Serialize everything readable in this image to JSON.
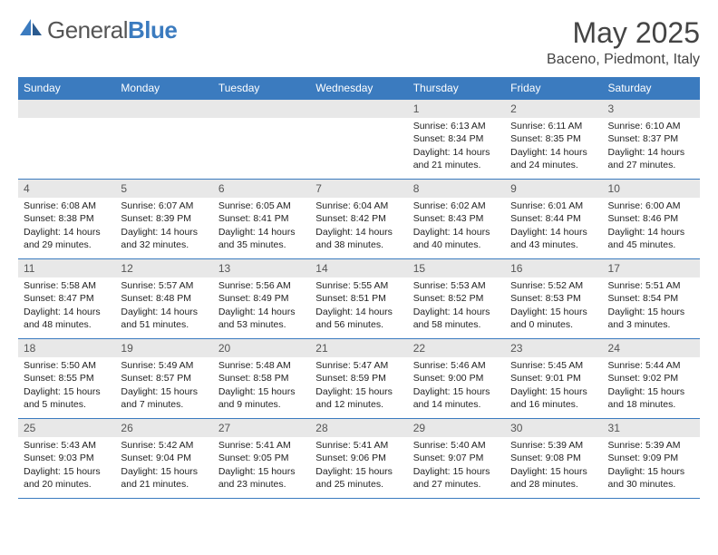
{
  "logo": {
    "part1": "General",
    "part2": "Blue"
  },
  "title": "May 2025",
  "location": "Baceno, Piedmont, Italy",
  "colors": {
    "header_bg": "#3b7bbf",
    "header_text": "#ffffff",
    "daynum_bg": "#e8e8e8",
    "border": "#3b7bbf",
    "text": "#222222"
  },
  "days": [
    "Sunday",
    "Monday",
    "Tuesday",
    "Wednesday",
    "Thursday",
    "Friday",
    "Saturday"
  ],
  "weeks": [
    [
      null,
      null,
      null,
      null,
      {
        "n": "1",
        "sr": "6:13 AM",
        "ss": "8:34 PM",
        "dl": "14 hours and 21 minutes."
      },
      {
        "n": "2",
        "sr": "6:11 AM",
        "ss": "8:35 PM",
        "dl": "14 hours and 24 minutes."
      },
      {
        "n": "3",
        "sr": "6:10 AM",
        "ss": "8:37 PM",
        "dl": "14 hours and 27 minutes."
      }
    ],
    [
      {
        "n": "4",
        "sr": "6:08 AM",
        "ss": "8:38 PM",
        "dl": "14 hours and 29 minutes."
      },
      {
        "n": "5",
        "sr": "6:07 AM",
        "ss": "8:39 PM",
        "dl": "14 hours and 32 minutes."
      },
      {
        "n": "6",
        "sr": "6:05 AM",
        "ss": "8:41 PM",
        "dl": "14 hours and 35 minutes."
      },
      {
        "n": "7",
        "sr": "6:04 AM",
        "ss": "8:42 PM",
        "dl": "14 hours and 38 minutes."
      },
      {
        "n": "8",
        "sr": "6:02 AM",
        "ss": "8:43 PM",
        "dl": "14 hours and 40 minutes."
      },
      {
        "n": "9",
        "sr": "6:01 AM",
        "ss": "8:44 PM",
        "dl": "14 hours and 43 minutes."
      },
      {
        "n": "10",
        "sr": "6:00 AM",
        "ss": "8:46 PM",
        "dl": "14 hours and 45 minutes."
      }
    ],
    [
      {
        "n": "11",
        "sr": "5:58 AM",
        "ss": "8:47 PM",
        "dl": "14 hours and 48 minutes."
      },
      {
        "n": "12",
        "sr": "5:57 AM",
        "ss": "8:48 PM",
        "dl": "14 hours and 51 minutes."
      },
      {
        "n": "13",
        "sr": "5:56 AM",
        "ss": "8:49 PM",
        "dl": "14 hours and 53 minutes."
      },
      {
        "n": "14",
        "sr": "5:55 AM",
        "ss": "8:51 PM",
        "dl": "14 hours and 56 minutes."
      },
      {
        "n": "15",
        "sr": "5:53 AM",
        "ss": "8:52 PM",
        "dl": "14 hours and 58 minutes."
      },
      {
        "n": "16",
        "sr": "5:52 AM",
        "ss": "8:53 PM",
        "dl": "15 hours and 0 minutes."
      },
      {
        "n": "17",
        "sr": "5:51 AM",
        "ss": "8:54 PM",
        "dl": "15 hours and 3 minutes."
      }
    ],
    [
      {
        "n": "18",
        "sr": "5:50 AM",
        "ss": "8:55 PM",
        "dl": "15 hours and 5 minutes."
      },
      {
        "n": "19",
        "sr": "5:49 AM",
        "ss": "8:57 PM",
        "dl": "15 hours and 7 minutes."
      },
      {
        "n": "20",
        "sr": "5:48 AM",
        "ss": "8:58 PM",
        "dl": "15 hours and 9 minutes."
      },
      {
        "n": "21",
        "sr": "5:47 AM",
        "ss": "8:59 PM",
        "dl": "15 hours and 12 minutes."
      },
      {
        "n": "22",
        "sr": "5:46 AM",
        "ss": "9:00 PM",
        "dl": "15 hours and 14 minutes."
      },
      {
        "n": "23",
        "sr": "5:45 AM",
        "ss": "9:01 PM",
        "dl": "15 hours and 16 minutes."
      },
      {
        "n": "24",
        "sr": "5:44 AM",
        "ss": "9:02 PM",
        "dl": "15 hours and 18 minutes."
      }
    ],
    [
      {
        "n": "25",
        "sr": "5:43 AM",
        "ss": "9:03 PM",
        "dl": "15 hours and 20 minutes."
      },
      {
        "n": "26",
        "sr": "5:42 AM",
        "ss": "9:04 PM",
        "dl": "15 hours and 21 minutes."
      },
      {
        "n": "27",
        "sr": "5:41 AM",
        "ss": "9:05 PM",
        "dl": "15 hours and 23 minutes."
      },
      {
        "n": "28",
        "sr": "5:41 AM",
        "ss": "9:06 PM",
        "dl": "15 hours and 25 minutes."
      },
      {
        "n": "29",
        "sr": "5:40 AM",
        "ss": "9:07 PM",
        "dl": "15 hours and 27 minutes."
      },
      {
        "n": "30",
        "sr": "5:39 AM",
        "ss": "9:08 PM",
        "dl": "15 hours and 28 minutes."
      },
      {
        "n": "31",
        "sr": "5:39 AM",
        "ss": "9:09 PM",
        "dl": "15 hours and 30 minutes."
      }
    ]
  ],
  "labels": {
    "sunrise": "Sunrise:",
    "sunset": "Sunset:",
    "daylight": "Daylight:"
  }
}
